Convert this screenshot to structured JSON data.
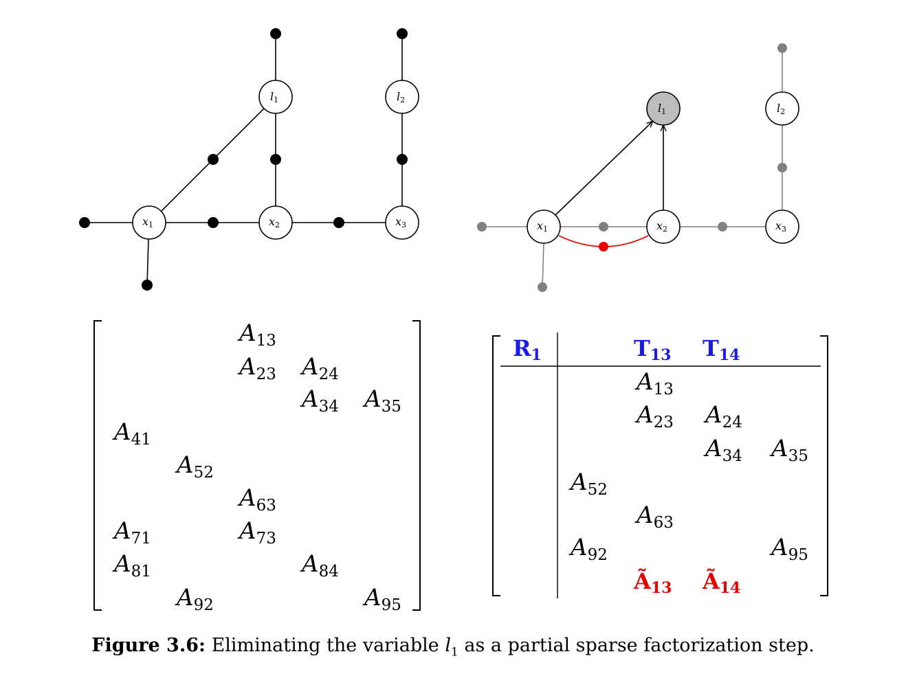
{
  "graph_left": {
    "nodes": [
      {
        "id": "l1",
        "label": "l",
        "sub": "1"
      },
      {
        "id": "l2",
        "label": "l",
        "sub": "2"
      },
      {
        "id": "x1",
        "label": "x",
        "sub": "1"
      },
      {
        "id": "x2",
        "label": "x",
        "sub": "2"
      },
      {
        "id": "x3",
        "label": "x",
        "sub": "3"
      }
    ]
  },
  "graph_right": {
    "nodes": [
      {
        "id": "l1",
        "label": "l",
        "sub": "1",
        "eliminated": true
      },
      {
        "id": "l2",
        "label": "l",
        "sub": "2"
      },
      {
        "id": "x1",
        "label": "x",
        "sub": "1"
      },
      {
        "id": "x2",
        "label": "x",
        "sub": "2"
      },
      {
        "id": "x3",
        "label": "x",
        "sub": "3"
      }
    ]
  },
  "matrix_left": {
    "entries": [
      {
        "base": "A",
        "sub": "13"
      },
      {
        "base": "A",
        "sub": "23"
      },
      {
        "base": "A",
        "sub": "24"
      },
      {
        "base": "A",
        "sub": "34"
      },
      {
        "base": "A",
        "sub": "35"
      },
      {
        "base": "A",
        "sub": "41"
      },
      {
        "base": "A",
        "sub": "52"
      },
      {
        "base": "A",
        "sub": "63"
      },
      {
        "base": "A",
        "sub": "71"
      },
      {
        "base": "A",
        "sub": "73"
      },
      {
        "base": "A",
        "sub": "81"
      },
      {
        "base": "A",
        "sub": "84"
      },
      {
        "base": "A",
        "sub": "92"
      },
      {
        "base": "A",
        "sub": "95"
      }
    ]
  },
  "matrix_right": {
    "header": [
      {
        "base": "R",
        "sub": "1"
      },
      {
        "base": "T",
        "sub": "13"
      },
      {
        "base": "T",
        "sub": "14"
      }
    ],
    "entries": [
      {
        "base": "A",
        "sub": "13"
      },
      {
        "base": "A",
        "sub": "23"
      },
      {
        "base": "A",
        "sub": "24"
      },
      {
        "base": "A",
        "sub": "34"
      },
      {
        "base": "A",
        "sub": "35"
      },
      {
        "base": "A",
        "sub": "52"
      },
      {
        "base": "A",
        "sub": "63"
      },
      {
        "base": "A",
        "sub": "92"
      },
      {
        "base": "A",
        "sub": "95"
      }
    ],
    "fill_in": [
      {
        "base": "Ã",
        "sub": "13"
      },
      {
        "base": "Ã",
        "sub": "14"
      }
    ]
  },
  "caption": {
    "label": "Figure 3.6:",
    "text": "Eliminating the variable",
    "var": "l",
    "var_sub": "1",
    "text2": "as a partial sparse factorization step."
  },
  "colors": {
    "header_blue": "#1a1ae6",
    "fill_red": "#e60000",
    "gray": "#808080",
    "eliminated_fill": "#bdbdbd"
  }
}
